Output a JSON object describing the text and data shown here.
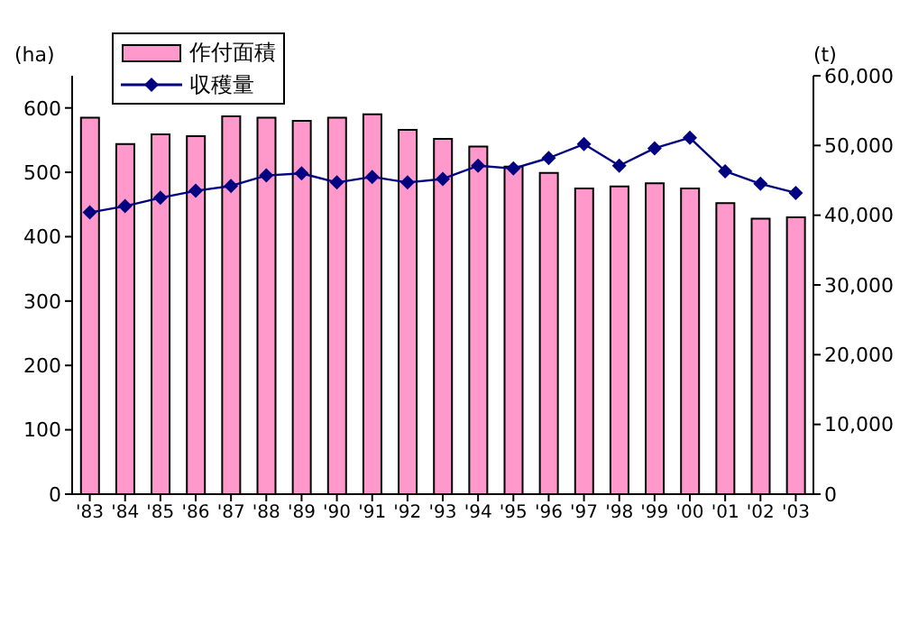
{
  "chart_data": {
    "type": "bar",
    "categories": [
      "'83",
      "'84",
      "'85",
      "'86",
      "'87",
      "'88",
      "'89",
      "'90",
      "'91",
      "'92",
      "'93",
      "'94",
      "'95",
      "'96",
      "'97",
      "'98",
      "'99",
      "'00",
      "'01",
      "'02",
      "'03"
    ],
    "series": [
      {
        "name": "作付面積",
        "color": "#ff99cc",
        "values": [
          585,
          544,
          559,
          556,
          587,
          585,
          580,
          585,
          590,
          566,
          552,
          540,
          509,
          499,
          475,
          478,
          483,
          475,
          452,
          428,
          430
        ]
      },
      {
        "name": "収穫量",
        "type": "line",
        "axis": "y2",
        "color": "#000080",
        "values": [
          40400,
          41300,
          42500,
          43500,
          44200,
          45700,
          46000,
          44700,
          45500,
          44700,
          45200,
          47100,
          46700,
          48200,
          50200,
          47100,
          49600,
          51100,
          46300,
          44500,
          43200
        ]
      }
    ],
    "ylabel": "(ha)",
    "y2label": "(t)",
    "ylim": [
      0,
      650
    ],
    "yticks": [
      0,
      100,
      200,
      300,
      400,
      500,
      600
    ],
    "y2lim": [
      0,
      60000
    ],
    "y2ticks": [
      {
        "value": 0,
        "label": "0"
      },
      {
        "value": 10000,
        "label": "10,000"
      },
      {
        "value": 20000,
        "label": "20,000"
      },
      {
        "value": 30000,
        "label": "30,000"
      },
      {
        "value": 40000,
        "label": "40,000"
      },
      {
        "value": 50000,
        "label": "50,000"
      },
      {
        "value": 60000,
        "label": "60,000"
      }
    ],
    "legend": "top left",
    "marker": "diamond",
    "grid": false
  }
}
